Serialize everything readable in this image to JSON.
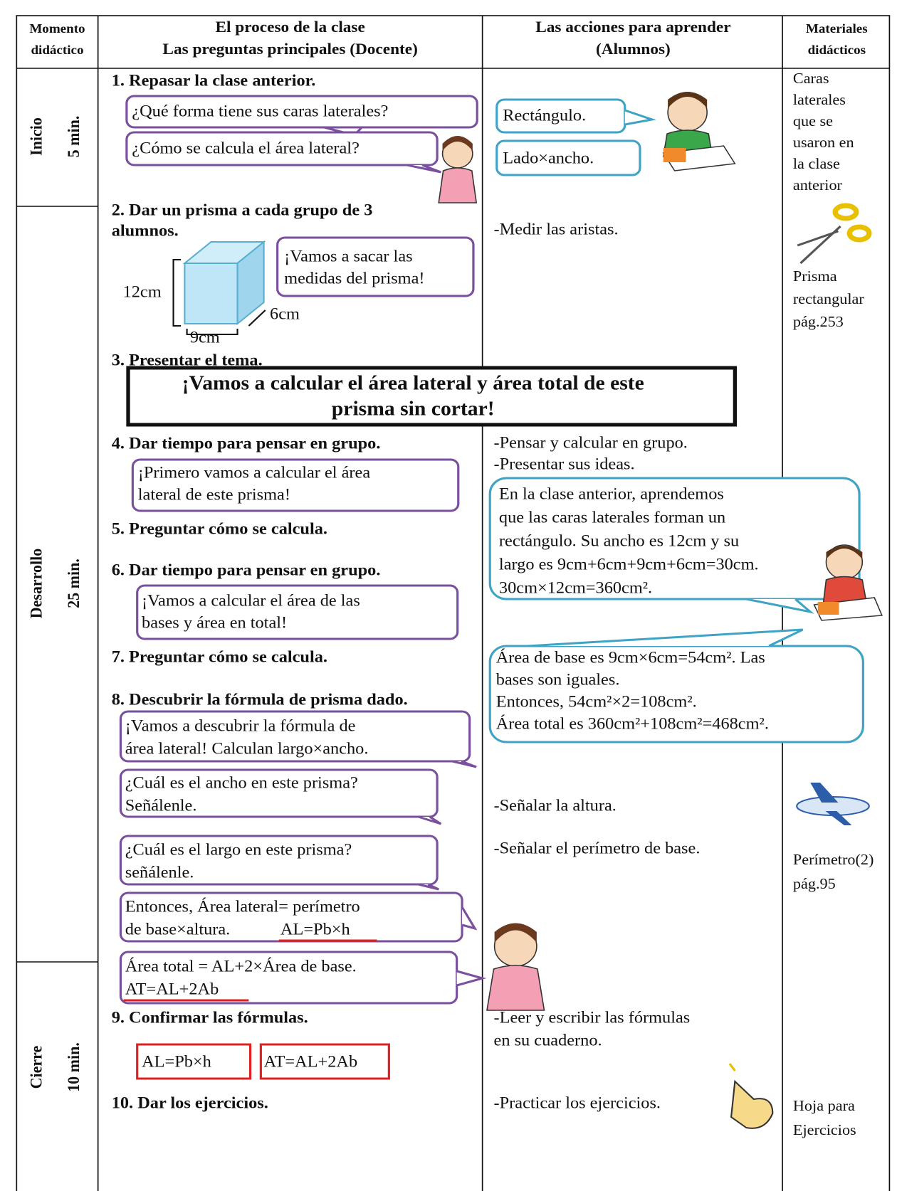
{
  "header": {
    "moment": [
      "Momento",
      "didáctico"
    ],
    "process": [
      "El proceso de la clase",
      "Las preguntas principales (Docente)"
    ],
    "actions": [
      "Las acciones para aprender",
      "(Alumnos)"
    ],
    "materials": [
      "Materiales",
      "didácticos"
    ]
  },
  "stages": [
    {
      "name": "Inicio",
      "time": "5 min."
    },
    {
      "name": "Desarrollo",
      "time": "25 min."
    },
    {
      "name": "Cierre",
      "time": "10 min."
    }
  ],
  "process": {
    "steps": [
      [
        "1. Repasar la clase anterior."
      ],
      [
        "2. Dar un prisma a cada grupo de 3",
        "alumnos."
      ],
      [
        "3. Presentar el tema."
      ],
      [
        "4. Dar tiempo para pensar en grupo."
      ],
      [
        "5. Preguntar cómo se calcula."
      ],
      [
        "6. Dar tiempo para pensar en grupo."
      ],
      [
        "7. Preguntar cómo se calcula."
      ],
      [
        "8. Descubrir la fórmula de prisma dado."
      ],
      [
        "9. Confirmar las fórmulas."
      ],
      [
        "10. Dar los ejercicios."
      ]
    ],
    "bubbles": [
      [
        "¿Qué forma tiene sus caras laterales?"
      ],
      [
        "¿Cómo se calcula el área lateral?"
      ],
      [
        "¡Vamos a sacar las",
        "medidas del prisma!"
      ],
      [
        "¡Primero vamos a calcular el área",
        "lateral de este prisma!"
      ],
      [
        "¡Vamos a calcular el área de las",
        "bases y área en total!"
      ],
      [
        "¡Vamos a descubrir la fórmula de",
        "área lateral! Calculan largo×ancho."
      ],
      [
        "¿Cuál es el ancho en este prisma?",
        "Señálenle."
      ],
      [
        "¿Cuál es el largo en este prisma?",
        "señálenle."
      ],
      [
        "Entonces, Área lateral= perímetro",
        "de base×altura."
      ],
      [
        "Área total = AL+2×Área de base."
      ]
    ],
    "underlined": [
      "AL=Pb×h",
      "AT=AL+2Ab"
    ],
    "prism": {
      "height": "12cm",
      "width": "9cm",
      "depth": "6cm"
    },
    "theme": [
      "¡Vamos a calcular el área lateral y área total de este",
      "prisma sin cortar!"
    ],
    "formulas": [
      "AL=Pb×h",
      "AT=AL+2Ab"
    ]
  },
  "actions": {
    "bubbles": [
      [
        "Rectángulo."
      ],
      [
        "Lado×ancho."
      ],
      [
        "En la clase anterior, aprendemos",
        "que las caras laterales forman un",
        "rectángulo. Su ancho es 12cm y su",
        "largo es 9cm+6cm+9cm+6cm=30cm.",
        "30cm×12cm=360cm²."
      ],
      [
        "Área de base es 9cm×6cm=54cm². Las",
        "bases son iguales.",
        "Entonces, 54cm²×2=108cm².",
        "Área total es 360cm²+108cm²=468cm²."
      ]
    ],
    "items": [
      [
        "-Medir las aristas."
      ],
      [
        "-Pensar y calcular en grupo.",
        "-Presentar sus ideas."
      ],
      [
        "-Señalar la altura."
      ],
      [
        "-Señalar el perímetro de base."
      ],
      [
        "-Leer y escribir las fórmulas",
        " en su cuaderno."
      ],
      [
        "-Practicar los ejercicios."
      ]
    ]
  },
  "materials": [
    [
      "Caras",
      "laterales",
      "que se",
      "usaron en",
      "la clase",
      "anterior"
    ],
    [
      "Prisma",
      "rectangular",
      "pág.253"
    ],
    [
      "Perímetro(2)",
      "pág.95"
    ],
    [
      "Hoja para",
      "Ejercicios"
    ]
  ]
}
